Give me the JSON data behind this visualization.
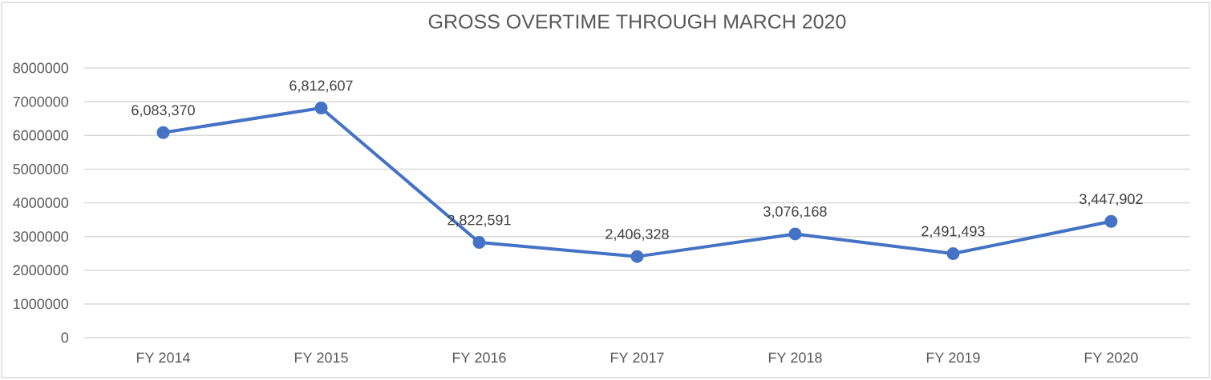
{
  "chart_data": {
    "type": "line",
    "title": "GROSS OVERTIME THROUGH MARCH 2020",
    "categories": [
      "FY 2014",
      "FY 2015",
      "FY 2016",
      "FY 2017",
      "FY 2018",
      "FY 2019",
      "FY 2020"
    ],
    "values": [
      6083370,
      6812607,
      2822591,
      2406328,
      3076168,
      2491493,
      3447902
    ],
    "value_labels": [
      "6,083,370",
      "6,812,607",
      "2,822,591",
      "2,406,328",
      "3,076,168",
      "2,491,493",
      "3,447,902"
    ],
    "color": "#4472c4",
    "marker": "circle",
    "line_style": "solid",
    "ylim": [
      0,
      8000000
    ],
    "yticks": [
      0,
      1000000,
      2000000,
      3000000,
      4000000,
      5000000,
      6000000,
      7000000,
      8000000
    ],
    "grid": "y"
  }
}
